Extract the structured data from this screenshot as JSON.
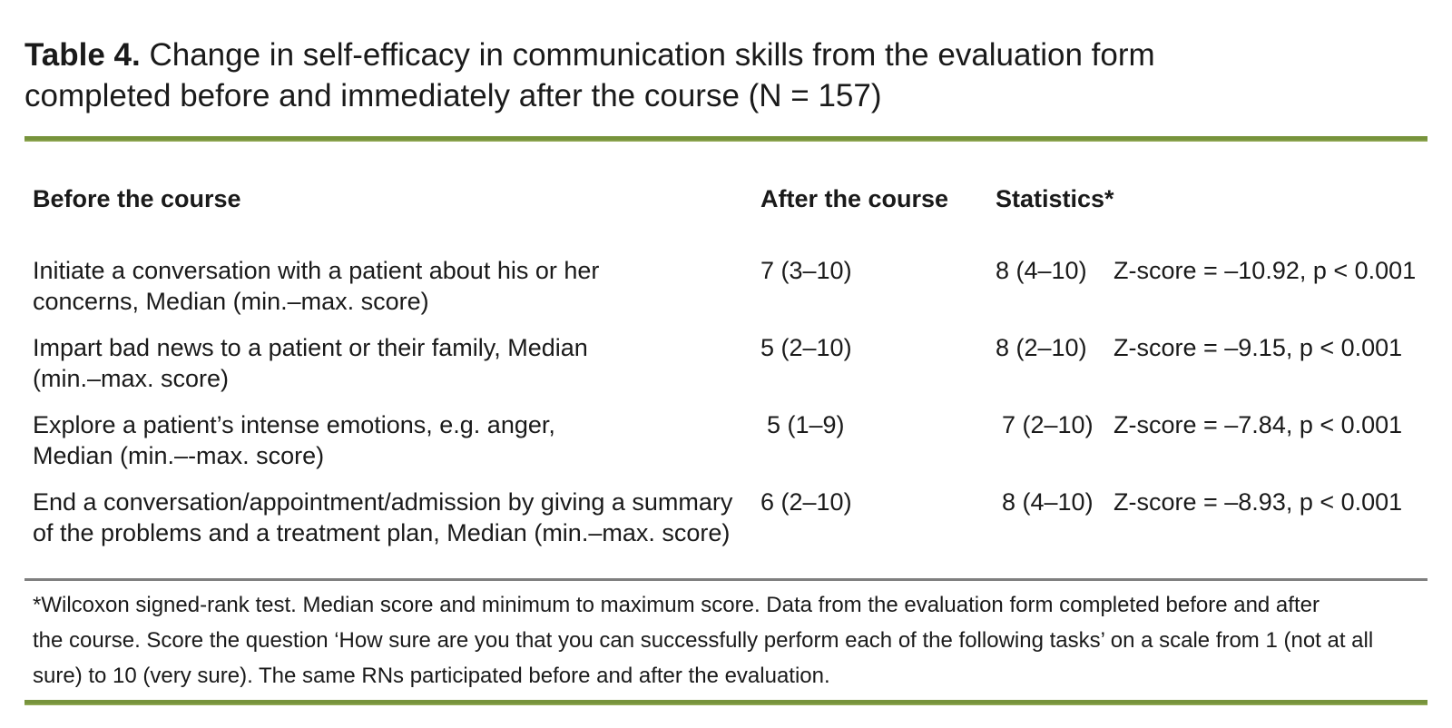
{
  "caption": {
    "label": "Table 4.",
    "line1": "Change in self-efficacy in communication skills from the evaluation form",
    "line2": "completed before and immediately after the course (N = 157)"
  },
  "table": {
    "headers": {
      "before": "Before the course",
      "after": "After the course",
      "statistics": "Statistics*"
    },
    "rows": [
      {
        "task_line1": "Initiate a conversation with a patient about his or her",
        "task_line2": "concerns, Median (min.–max. score)",
        "before": "7 (3–10)",
        "after": "8 (4–10)",
        "statistics": "Z-score = –10.92, p < 0.001"
      },
      {
        "task_line1": "Impart bad news to a patient or their family, Median",
        "task_line2": "(min.–max. score)",
        "before": "5 (2–10)",
        "after": "8 (2–10)",
        "statistics": "Z-score = –9.15, p < 0.001"
      },
      {
        "task_line1": "Explore a patient’s intense emotions, e.g. anger,",
        "task_line2": "Median (min.–-max. score)",
        "before": "5 (1–9)",
        "after": "7 (2–10)",
        "statistics": "Z-score = –7.84, p < 0.001"
      },
      {
        "task_line1": "End a conversation/appointment/admission by giving a summary",
        "task_line2": "of the problems and a treatment plan, Median (min.–max. score)",
        "before": "6 (2–10)",
        "after": "8 (4–10)",
        "statistics": "Z-score = –8.93, p < 0.001"
      }
    ]
  },
  "footnote": {
    "lines": [
      " *Wilcoxon signed-rank test. Median score and minimum to maximum score. Data from the evaluation form completed before and after",
      "the course. Score the question ‘How sure are you that you can successfully perform each of the following tasks’ on a scale from 1 (not at all",
      "sure) to 10 (very sure). The same RNs participated before and after the evaluation."
    ]
  },
  "colors": {
    "accent_green": "#77933C",
    "accent_green_light": "#9DB35F",
    "divider_gray": "#7F7F7F"
  }
}
